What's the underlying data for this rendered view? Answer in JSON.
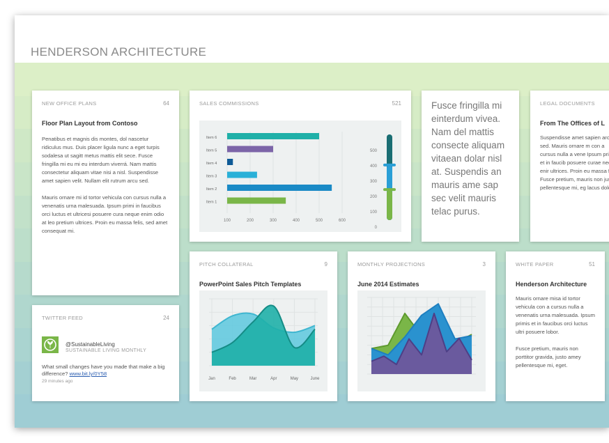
{
  "app": {
    "title": "HENDERSON ARCHITECTURE"
  },
  "colors": {
    "accent_green": "#7ab648",
    "teal": "#1fb0a8",
    "blue": "#1a8ac6",
    "purple": "#7c65a8",
    "dark_teal": "#0e6e72"
  },
  "cards": {
    "office": {
      "header": "NEW OFFICE PLANS",
      "count": "64",
      "title": "Floor Plan Layout from Contoso",
      "p1": "Penatibus et magnis dis montes, dol nascetur ridiculus mus. Duis placer ligula nunc a eget turpis sodalesa ut sagitt metus mattis elit sece. Fusce fringilla mi eu mi eu interdum viverrá. Nam mattis consectetur aliquam vitae nisi a nisl. Suspendisse amet sapien velit. Nullam elit rutrum arcu sed.",
      "p2": "Mauris ornare mi id tortor vehicula con cursus nulla a venenatis urna malesuada. Ipsum primi in faucibus orci luctus et ultricesi posuere cura neque enim odio at leo pretium ultrices. Proin eu massa felis, sed amet consequat mi."
    },
    "sales": {
      "header": "SALES COMMISSIONS",
      "count": "521"
    },
    "quote": {
      "text": "Fusce fringilla mi einterdum vivea. Nam del mattis consecte aliquam vitaean dolar nisl at. Suspendis an mauris ame sap sec velit mauris telac purus."
    },
    "legal": {
      "header": "LEGAL DOCUMENTS",
      "title": "From The Offices of L",
      "p1": "Suspendisse amet sapien arcu sed. Mauris ornare m con a cursus nulla a vene Ipsum primis et in faucib posuere curae neque enir ultrices. Proin eu massa fe Fusce pretium, mauris non justo pellentesque mi, eg lacus dolor."
    },
    "twitter": {
      "header": "TWITTER FEED",
      "count": "24",
      "handle": "@SustainableLiving",
      "sub": "SUSTAINABLE LIVING MONTHLY",
      "text": "What small changes have you made that make a big difference?",
      "link": "www.bit.ly/0Y58",
      "time": "29 minutes ago"
    },
    "pitch": {
      "header": "PITCH COLLATERAL",
      "count": "9",
      "title": "PowerPoint Sales Pitch Templates"
    },
    "monthly": {
      "header": "MONTHLY PROJECTIONS",
      "count": "3",
      "title": "June 2014 Estimates"
    },
    "white": {
      "header": "WHITE PAPER",
      "count": "51",
      "title": "Henderson Architecture",
      "p1": "Mauris ornare misa id tortor vehicula con a cursus nulla a venenatis urna malesuada. Ipsum primis et in faucibus orci luctus ultri posuere lobor.",
      "p2": "Fusce pretium, mauris non porttitor gravida, justo amey pellentesque mi, eget."
    }
  },
  "chart_data": [
    {
      "type": "bar",
      "orientation": "horizontal",
      "categories": [
        "Item 1",
        "Item 2",
        "Item 3",
        "Item 4",
        "Item 5",
        "Item 6"
      ],
      "values": [
        355,
        555,
        230,
        125,
        300,
        500
      ],
      "colors": [
        "#7ab648",
        "#1a8ac6",
        "#2ab0d8",
        "#0e5a96",
        "#7c65a8",
        "#1fb0a8"
      ],
      "xticks": [
        "100",
        "200",
        "300",
        "400",
        "500",
        "600"
      ],
      "xlim": [
        100,
        600
      ],
      "gauge": {
        "ticks": [
          "500",
          "400",
          "300",
          "200",
          "100",
          "0"
        ],
        "upper": 360,
        "lower": 200,
        "range": [
          0,
          560
        ]
      }
    },
    {
      "type": "area",
      "x": [
        "Jan",
        "Feb",
        "Mar",
        "Apr",
        "May",
        "June"
      ],
      "series": [
        {
          "values": [
            60,
            82,
            85,
            62,
            55,
            66
          ],
          "color": "#5cc8de"
        },
        {
          "values": [
            22,
            38,
            72,
            98,
            30,
            60
          ],
          "color": "#1fb0a8"
        }
      ],
      "ylim": [
        0,
        110
      ]
    },
    {
      "type": "area",
      "series": [
        {
          "values": [
            40,
            45,
            95,
            60,
            80,
            48,
            62
          ],
          "color": "#7ab648"
        },
        {
          "values": [
            40,
            30,
            58,
            92,
            110,
            55,
            60
          ],
          "color": "#2a92cf"
        },
        {
          "values": [
            20,
            28,
            15,
            55,
            30,
            95,
            35,
            56,
            22
          ],
          "color": "#6a5a9e"
        }
      ]
    }
  ]
}
